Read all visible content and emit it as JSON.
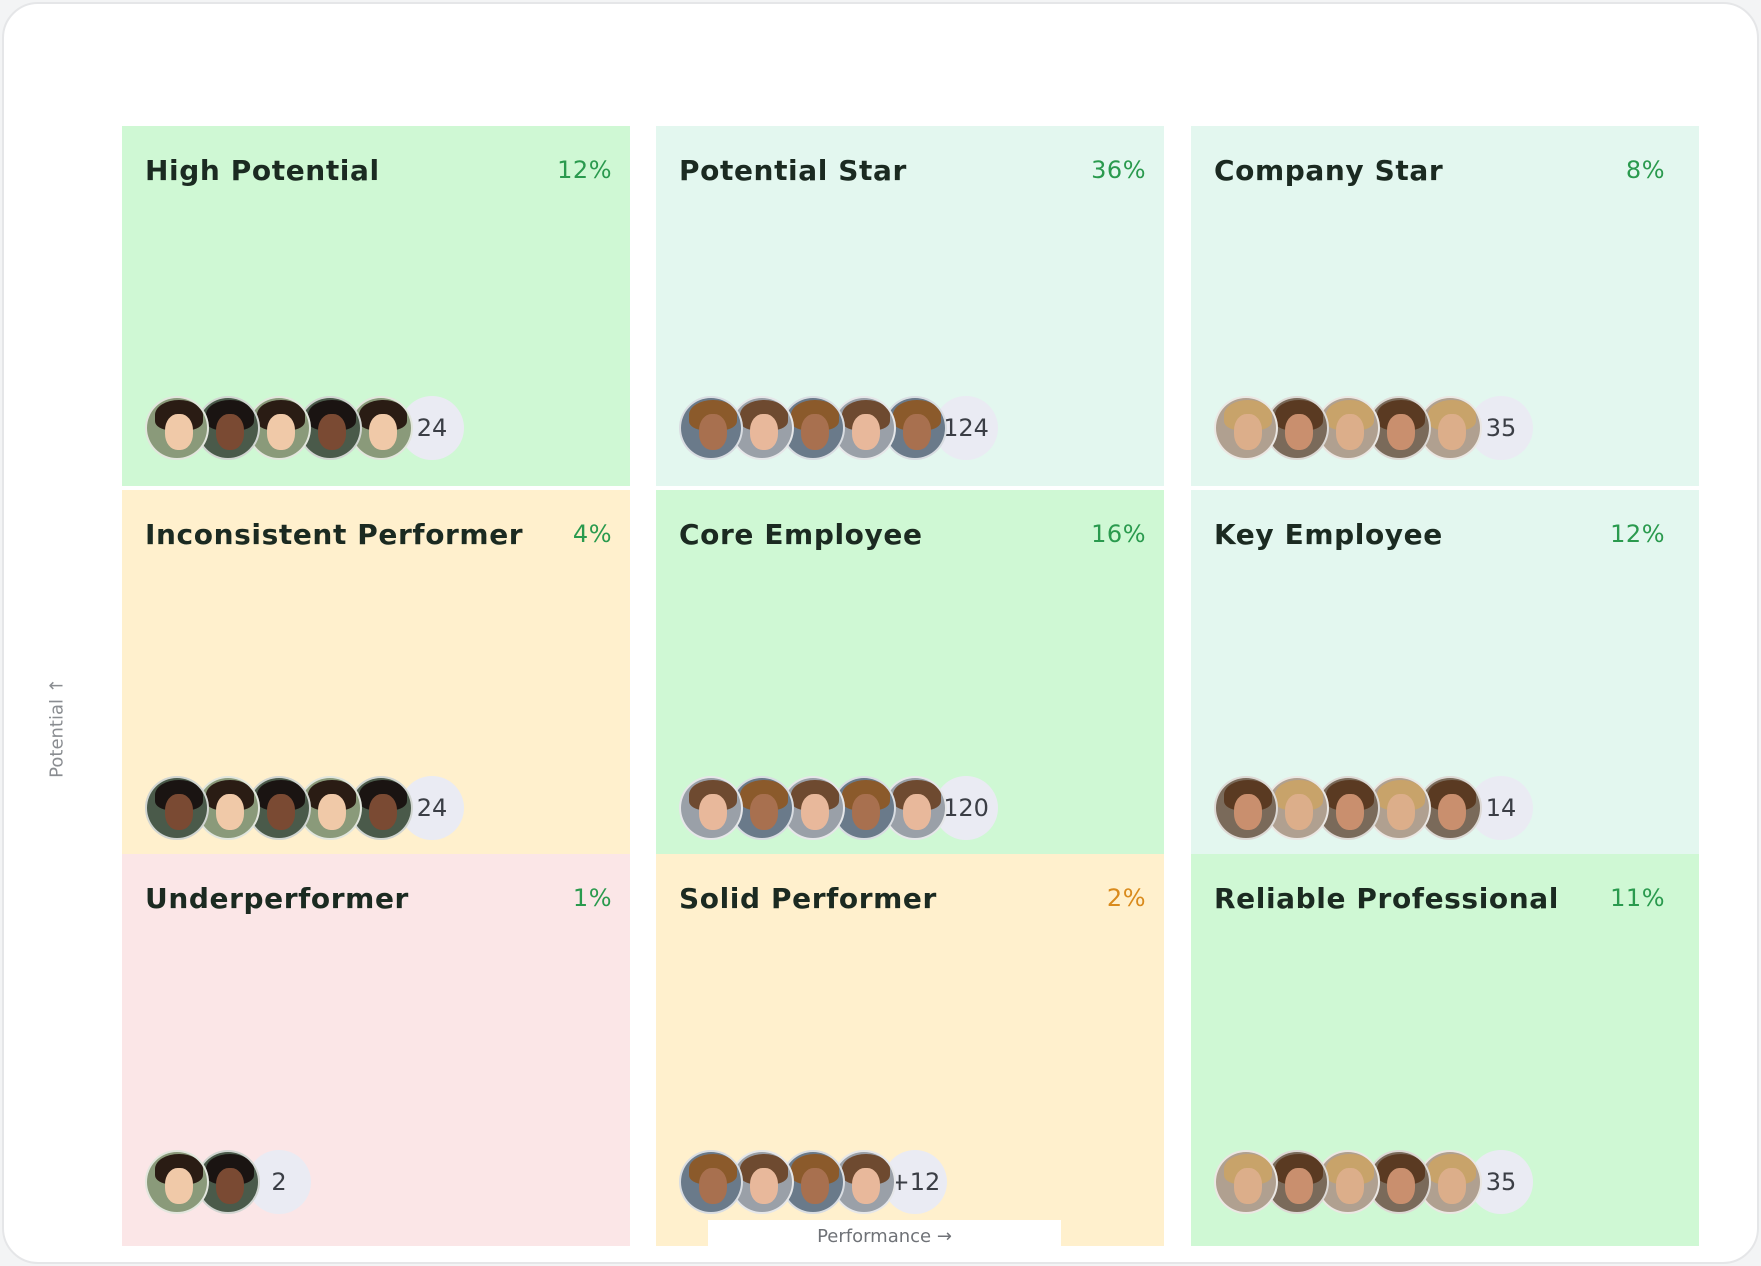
{
  "axes": {
    "y_label": "Potential ↑",
    "x_label": "Performance →"
  },
  "cells": [
    {
      "title": "High Potential",
      "percent": "12%",
      "count": "24",
      "avatars": 5,
      "bg": "#cff8d4",
      "pct_color": "#2a9a4e"
    },
    {
      "title": "Potential Star",
      "percent": "36%",
      "count": "124",
      "avatars": 5,
      "bg": "#e3f7ef",
      "pct_color": "#2a9a4e"
    },
    {
      "title": "Company Star",
      "percent": "8%",
      "count": "35",
      "avatars": 5,
      "bg": "#e3f7ef",
      "pct_color": "#2a9a4e"
    },
    {
      "title": "Inconsistent Performer",
      "percent": "4%",
      "count": "24",
      "avatars": 5,
      "bg": "#fff0cd",
      "pct_color": "#2a9a4e"
    },
    {
      "title": "Core Employee",
      "percent": "16%",
      "count": "120",
      "avatars": 5,
      "bg": "#cff8d4",
      "pct_color": "#2a9a4e"
    },
    {
      "title": "Key Employee",
      "percent": "12%",
      "count": "14",
      "avatars": 5,
      "bg": "#e3f7ef",
      "pct_color": "#2a9a4e"
    },
    {
      "title": "Underperformer",
      "percent": "1%",
      "count": "2",
      "avatars": 2,
      "bg": "#fbe6e7",
      "pct_color": "#2a9a4e"
    },
    {
      "title": "Solid Performer",
      "percent": "2%",
      "count": "+12",
      "avatars": 4,
      "bg": "#fff0cd",
      "pct_color": "#d98a1c"
    },
    {
      "title": "Reliable Professional",
      "percent": "11%",
      "count": "35",
      "avatars": 5,
      "bg": "#cff8d4",
      "pct_color": "#2a9a4e"
    }
  ],
  "palette": {
    "skin": [
      "#e8b89b",
      "#c98f6e",
      "#f0c9a8",
      "#a8704f",
      "#dcae8a",
      "#7a4a33"
    ],
    "hair": [
      "#5a3a22",
      "#2a1c14",
      "#8b5a2b",
      "#c8a36a",
      "#1a1412",
      "#6e4a30"
    ],
    "bg": [
      "#8a9a7a",
      "#6a7a8a",
      "#b0a090",
      "#4a5a4a",
      "#9aa0a8",
      "#7a6a5a"
    ]
  }
}
